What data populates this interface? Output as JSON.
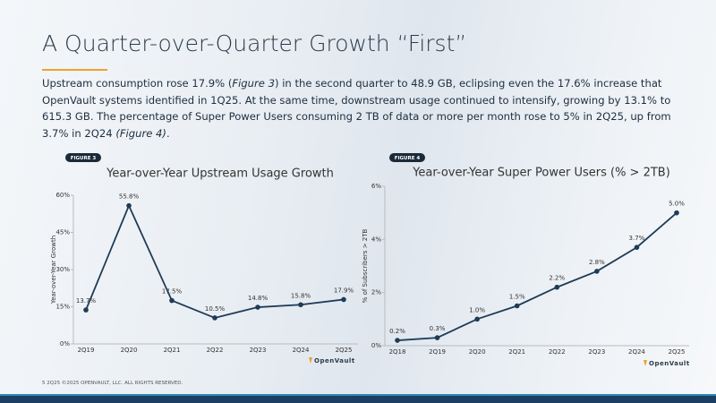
{
  "slide": {
    "title": "A Quarter-over-Quarter Growth “First”",
    "body": [
      "Upstream consumption rose 17.9% (",
      "Figure 3",
      ") in the second quarter to 48.9 GB, eclipsing even the 17.6% increase that OpenVault systems identified in 1Q25. At the same time, downstream usage continued to intensify, growing by 13.1% to 615.3 GB.  The percentage of Super Power Users consuming 2 TB of data or more per month rose to 5% in 2Q25, up from 3.7% in 2Q24 ",
      "(Figure 4)",
      "."
    ],
    "footer": "5  2Q25 ©2025 OPENVAULT, LLC. ALL RIGHTS RESERVED.",
    "logo": "OpenVault"
  },
  "chart_data": [
    {
      "type": "line",
      "figure_label": "FIGURE 3",
      "title": "Year-over-Year Upstream Usage Growth",
      "y_label": "Year-over-Year Growth",
      "categories": [
        "2Q19",
        "2Q20",
        "2Q21",
        "2Q22",
        "2Q23",
        "2Q24",
        "2Q25"
      ],
      "values": [
        13.7,
        55.8,
        17.5,
        10.5,
        14.8,
        15.8,
        17.9
      ],
      "value_labels": [
        "13.7%",
        "55.8%",
        "17.5%",
        "10.5%",
        "14.8%",
        "15.8%",
        "17.9%"
      ],
      "color": "#1f3b57",
      "ylim": [
        0,
        60
      ],
      "yticks": [
        {
          "value": 0,
          "label": "0%"
        },
        {
          "value": 15,
          "label": "15%"
        },
        {
          "value": 30,
          "label": "30%"
        },
        {
          "value": 45,
          "label": "45%"
        },
        {
          "value": 60,
          "label": "60%"
        }
      ]
    },
    {
      "type": "line",
      "figure_label": "FIGURE 4",
      "title": "Year-over-Year Super Power Users (% > 2TB)",
      "y_label": "% of Subscribers > 2TB",
      "categories": [
        "2Q18",
        "2Q19",
        "2Q20",
        "2Q21",
        "2Q22",
        "2Q23",
        "2Q24",
        "2Q25"
      ],
      "values": [
        0.2,
        0.3,
        1.0,
        1.5,
        2.2,
        2.8,
        3.7,
        5.0
      ],
      "value_labels": [
        "0.2%",
        "0.3%",
        "1.0%",
        "1.5%",
        "2.2%",
        "2.8%",
        "3.7%",
        "5.0%"
      ],
      "color": "#1f3b57",
      "ylim": [
        0,
        6
      ],
      "yticks": [
        {
          "value": 0,
          "label": "0%"
        },
        {
          "value": 2,
          "label": "2%"
        },
        {
          "value": 4,
          "label": "4%"
        },
        {
          "value": 6,
          "label": "6%"
        }
      ]
    }
  ]
}
